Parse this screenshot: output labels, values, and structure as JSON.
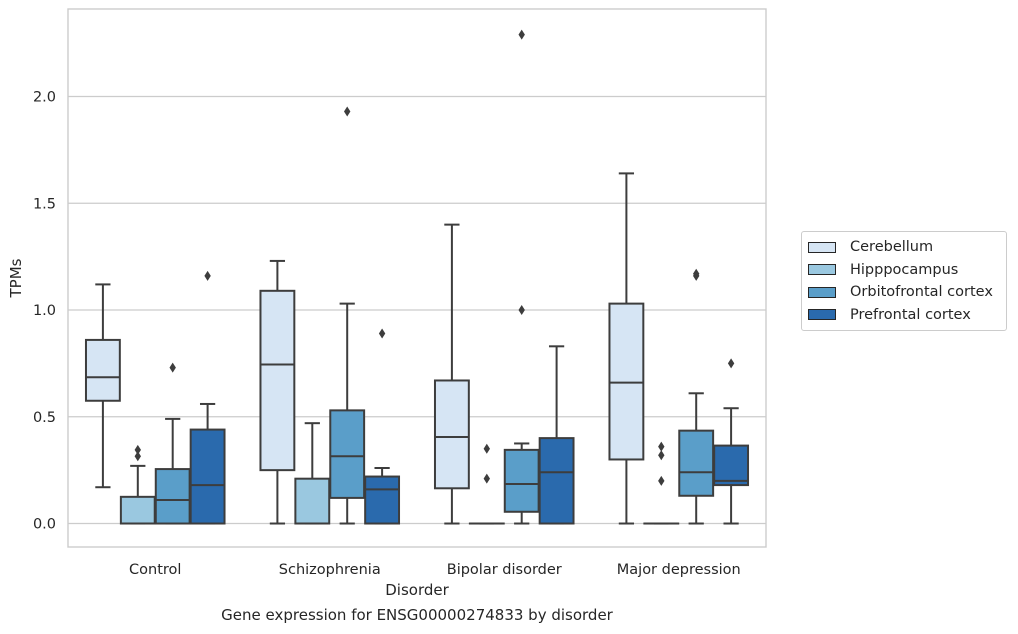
{
  "chart_data": {
    "type": "box",
    "xlabel": "Disorder",
    "ylabel": "TPMs",
    "caption": "Gene expression for ENSG00000274833 by disorder",
    "categories": [
      "Control",
      "Schizophrenia",
      "Bipolar disorder",
      "Major depression"
    ],
    "ylim": [
      -0.11,
      2.41
    ],
    "yticks": [
      "0.0",
      "0.5",
      "1.0",
      "1.5",
      "2.0"
    ],
    "ytick_values": [
      0.0,
      0.5,
      1.0,
      1.5,
      2.0
    ],
    "grid": "horizontal",
    "legend_position": "right",
    "series": [
      {
        "name": "Cerebellum",
        "color": "#d6e5f4",
        "boxes": [
          {
            "whislo": 0.17,
            "q1": 0.575,
            "med": 0.685,
            "q3": 0.86,
            "whishi": 1.12,
            "fliers": []
          },
          {
            "whislo": 0.0,
            "q1": 0.25,
            "med": 0.745,
            "q3": 1.09,
            "whishi": 1.23,
            "fliers": []
          },
          {
            "whislo": 0.0,
            "q1": 0.165,
            "med": 0.405,
            "q3": 0.67,
            "whishi": 1.4,
            "fliers": []
          },
          {
            "whislo": 0.0,
            "q1": 0.3,
            "med": 0.66,
            "q3": 1.03,
            "whishi": 1.64,
            "fliers": []
          }
        ]
      },
      {
        "name": "Hipppocampus",
        "color": "#9ac8e0",
        "boxes": [
          {
            "whislo": 0.0,
            "q1": 0.0,
            "med": 0.0,
            "q3": 0.125,
            "whishi": 0.27,
            "fliers": [
              0.315,
              0.345
            ]
          },
          {
            "whislo": 0.0,
            "q1": 0.0,
            "med": 0.0,
            "q3": 0.21,
            "whishi": 0.47,
            "fliers": []
          },
          {
            "whislo": 0.0,
            "q1": 0.0,
            "med": 0.0,
            "q3": 0.0,
            "whishi": 0.0,
            "fliers": [
              0.21,
              0.35
            ]
          },
          {
            "whislo": 0.0,
            "q1": 0.0,
            "med": 0.0,
            "q3": 0.0,
            "whishi": 0.0,
            "fliers": [
              0.2,
              0.32,
              0.36
            ]
          }
        ]
      },
      {
        "name": "Orbitofrontal cortex",
        "color": "#5a9ec9",
        "boxes": [
          {
            "whislo": 0.0,
            "q1": 0.0,
            "med": 0.11,
            "q3": 0.255,
            "whishi": 0.49,
            "fliers": [
              0.73
            ]
          },
          {
            "whislo": 0.0,
            "q1": 0.12,
            "med": 0.315,
            "q3": 0.53,
            "whishi": 1.03,
            "fliers": [
              1.93
            ]
          },
          {
            "whislo": 0.0,
            "q1": 0.055,
            "med": 0.185,
            "q3": 0.345,
            "whishi": 0.375,
            "fliers": [
              1.0,
              2.29
            ]
          },
          {
            "whislo": 0.0,
            "q1": 0.13,
            "med": 0.24,
            "q3": 0.435,
            "whishi": 0.61,
            "fliers": [
              1.16,
              1.17
            ]
          }
        ]
      },
      {
        "name": "Prefrontal cortex",
        "color": "#2a6aad",
        "boxes": [
          {
            "whislo": 0.0,
            "q1": 0.0,
            "med": 0.18,
            "q3": 0.44,
            "whishi": 0.56,
            "fliers": [
              1.16
            ]
          },
          {
            "whislo": 0.0,
            "q1": 0.0,
            "med": 0.16,
            "q3": 0.22,
            "whishi": 0.26,
            "fliers": [
              0.89
            ]
          },
          {
            "whislo": 0.0,
            "q1": 0.0,
            "med": 0.24,
            "q3": 0.4,
            "whishi": 0.83,
            "fliers": []
          },
          {
            "whislo": 0.0,
            "q1": 0.18,
            "med": 0.2,
            "q3": 0.365,
            "whishi": 0.54,
            "fliers": [
              0.75
            ]
          }
        ]
      }
    ]
  }
}
